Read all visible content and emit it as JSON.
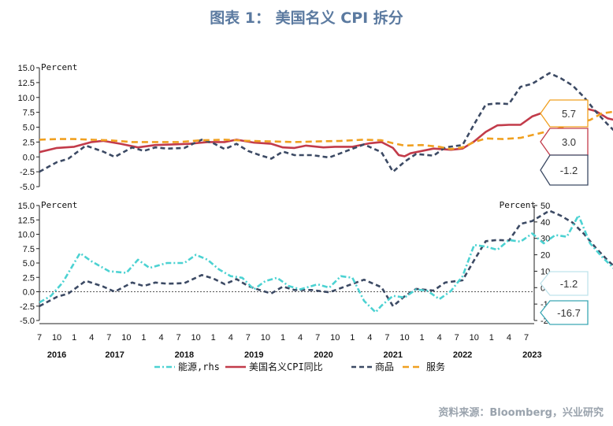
{
  "title": "图表 1：  美国名义 CPI 拆分",
  "source": "资料来源：Bloomberg，兴业研究",
  "chart_data": [
    {
      "type": "line",
      "panel": "top",
      "unit_label": "Percent",
      "ylim": [
        -5,
        15
      ],
      "yticks": [
        "15.0",
        "12.5",
        "10.0",
        "7.5",
        "5.0",
        "2.5",
        "0.0",
        "-2.5",
        "-5.0"
      ],
      "x_start": "2016-07",
      "x_end": "2023-07",
      "series": [
        {
          "key": "cpi",
          "color": "#c23b4a",
          "dash": "solid",
          "values": [
            [
              0,
              0.8
            ],
            [
              3,
              1.5
            ],
            [
              6,
              1.7
            ],
            [
              9,
              2.5
            ],
            [
              11,
              2.7
            ],
            [
              14,
              2.2
            ],
            [
              17,
              1.6
            ],
            [
              20,
              2.0
            ],
            [
              23,
              2.1
            ],
            [
              26,
              2.2
            ],
            [
              29,
              2.5
            ],
            [
              32,
              2.5
            ],
            [
              34,
              2.9
            ],
            [
              37,
              2.4
            ],
            [
              40,
              2.2
            ],
            [
              42,
              1.6
            ],
            [
              44,
              1.5
            ],
            [
              46,
              1.9
            ],
            [
              49,
              1.6
            ],
            [
              51,
              1.7
            ],
            [
              54,
              1.7
            ],
            [
              57,
              2.3
            ],
            [
              59,
              2.5
            ],
            [
              61,
              1.5
            ],
            [
              62,
              0.3
            ],
            [
              63,
              0.1
            ],
            [
              64,
              0.6
            ],
            [
              66,
              1.0
            ],
            [
              68,
              1.4
            ],
            [
              71,
              1.2
            ],
            [
              73,
              1.4
            ],
            [
              75,
              2.6
            ],
            [
              77,
              4.2
            ],
            [
              79,
              5.3
            ],
            [
              81,
              5.4
            ],
            [
              83,
              5.4
            ],
            [
              85,
              6.8
            ],
            [
              87,
              7.5
            ],
            [
              89,
              8.5
            ],
            [
              90,
              8.3
            ],
            [
              92,
              9.1
            ],
            [
              94,
              8.2
            ],
            [
              96,
              7.7
            ],
            [
              98,
              6.5
            ],
            [
              100,
              6.0
            ],
            [
              102,
              4.9
            ],
            [
              104,
              4.0
            ],
            [
              106,
              3.0
            ]
          ]
        },
        {
          "key": "goods",
          "color": "#3c4a64",
          "dash": "6,4",
          "values": [
            [
              0,
              -2.5
            ],
            [
              3,
              -0.9
            ],
            [
              5,
              -0.3
            ],
            [
              8,
              1.9
            ],
            [
              11,
              0.9
            ],
            [
              13,
              0.0
            ],
            [
              16,
              1.6
            ],
            [
              18,
              1.0
            ],
            [
              20,
              1.6
            ],
            [
              22,
              1.4
            ],
            [
              25,
              1.5
            ],
            [
              28,
              2.9
            ],
            [
              30,
              2.3
            ],
            [
              32,
              1.3
            ],
            [
              34,
              2.2
            ],
            [
              36,
              1.0
            ],
            [
              38,
              0.3
            ],
            [
              40,
              -0.3
            ],
            [
              42,
              0.9
            ],
            [
              44,
              0.3
            ],
            [
              47,
              0.3
            ],
            [
              50,
              -0.1
            ],
            [
              53,
              1.0
            ],
            [
              56,
              2.1
            ],
            [
              59,
              0.8
            ],
            [
              61,
              -2.5
            ],
            [
              63,
              -0.8
            ],
            [
              65,
              0.5
            ],
            [
              68,
              0.2
            ],
            [
              70,
              1.6
            ],
            [
              73,
              2.0
            ],
            [
              75,
              5.5
            ],
            [
              77,
              8.8
            ],
            [
              79,
              9.0
            ],
            [
              81,
              8.9
            ],
            [
              83,
              11.8
            ],
            [
              85,
              12.3
            ],
            [
              87,
              13.5
            ],
            [
              88,
              14.1
            ],
            [
              90,
              13.2
            ],
            [
              92,
              12.0
            ],
            [
              94,
              10.0
            ],
            [
              96,
              7.6
            ],
            [
              98,
              5.5
            ],
            [
              100,
              3.6
            ],
            [
              103,
              1.4
            ],
            [
              106,
              -1.2
            ]
          ]
        },
        {
          "key": "services",
          "color": "#f0a020",
          "dash": "8,5",
          "values": [
            [
              0,
              2.9
            ],
            [
              3,
              3.0
            ],
            [
              6,
              3.0
            ],
            [
              9,
              2.9
            ],
            [
              12,
              2.8
            ],
            [
              16,
              2.5
            ],
            [
              20,
              2.5
            ],
            [
              24,
              2.5
            ],
            [
              28,
              2.8
            ],
            [
              32,
              2.9
            ],
            [
              36,
              2.7
            ],
            [
              40,
              2.6
            ],
            [
              44,
              2.5
            ],
            [
              48,
              2.6
            ],
            [
              52,
              2.7
            ],
            [
              56,
              2.9
            ],
            [
              59,
              2.8
            ],
            [
              61,
              2.3
            ],
            [
              63,
              1.9
            ],
            [
              66,
              2.0
            ],
            [
              69,
              1.7
            ],
            [
              71,
              1.3
            ],
            [
              73,
              1.6
            ],
            [
              75,
              2.5
            ],
            [
              77,
              3.1
            ],
            [
              80,
              3.0
            ],
            [
              83,
              3.2
            ],
            [
              86,
              3.9
            ],
            [
              89,
              4.6
            ],
            [
              92,
              5.6
            ],
            [
              95,
              6.2
            ],
            [
              97,
              7.3
            ],
            [
              99,
              7.6
            ],
            [
              102,
              7.6
            ],
            [
              104,
              6.9
            ],
            [
              106,
              5.7
            ]
          ]
        }
      ],
      "callouts": [
        {
          "text": "5.7",
          "color": "#f0a020"
        },
        {
          "text": "3.0",
          "color": "#c23b4a"
        },
        {
          "text": "-1.2",
          "color": "#3c4a64"
        }
      ]
    },
    {
      "type": "line",
      "panel": "bottom",
      "unit_label_left": "Percent",
      "unit_label_right": "Percent",
      "ylim": [
        -5,
        15
      ],
      "yticks": [
        "15.0",
        "12.5",
        "10.0",
        "7.5",
        "5.0",
        "2.5",
        "0.0",
        "-2.5",
        "-5.0"
      ],
      "ylim_rhs": [
        -20,
        50
      ],
      "yticks_rhs": [
        "50",
        "40",
        "30",
        "20",
        "10",
        "0",
        "-10",
        "-20"
      ],
      "zero_line": true,
      "series": [
        {
          "key": "goods",
          "axis": "left",
          "color": "#3c4a64",
          "dash": "6,4",
          "values": [
            [
              0,
              -2.5
            ],
            [
              3,
              -0.9
            ],
            [
              5,
              -0.3
            ],
            [
              8,
              1.9
            ],
            [
              11,
              0.9
            ],
            [
              13,
              0.0
            ],
            [
              16,
              1.6
            ],
            [
              18,
              1.0
            ],
            [
              20,
              1.6
            ],
            [
              22,
              1.4
            ],
            [
              25,
              1.5
            ],
            [
              28,
              2.9
            ],
            [
              30,
              2.3
            ],
            [
              32,
              1.3
            ],
            [
              34,
              2.2
            ],
            [
              36,
              1.0
            ],
            [
              38,
              0.3
            ],
            [
              40,
              -0.3
            ],
            [
              42,
              0.9
            ],
            [
              44,
              0.3
            ],
            [
              47,
              0.3
            ],
            [
              50,
              -0.1
            ],
            [
              53,
              1.0
            ],
            [
              56,
              2.1
            ],
            [
              59,
              0.8
            ],
            [
              61,
              -2.5
            ],
            [
              63,
              -0.8
            ],
            [
              65,
              0.5
            ],
            [
              68,
              0.2
            ],
            [
              70,
              1.6
            ],
            [
              73,
              2.0
            ],
            [
              75,
              5.5
            ],
            [
              77,
              8.8
            ],
            [
              79,
              9.0
            ],
            [
              81,
              8.9
            ],
            [
              83,
              11.8
            ],
            [
              85,
              12.3
            ],
            [
              87,
              13.5
            ],
            [
              88,
              14.1
            ],
            [
              90,
              13.2
            ],
            [
              92,
              12.0
            ],
            [
              94,
              10.0
            ],
            [
              96,
              7.6
            ],
            [
              98,
              5.5
            ],
            [
              100,
              3.6
            ],
            [
              103,
              1.4
            ],
            [
              106,
              -1.2
            ]
          ]
        },
        {
          "key": "energy",
          "axis": "right",
          "color": "#4cd2d2",
          "dash": "7,3,2,3",
          "values": [
            [
              0,
              -9
            ],
            [
              2,
              -5
            ],
            [
              4,
              3
            ],
            [
              7,
              21
            ],
            [
              9,
              16
            ],
            [
              12,
              10
            ],
            [
              15,
              9
            ],
            [
              17,
              17
            ],
            [
              19,
              12
            ],
            [
              22,
              15
            ],
            [
              25,
              15
            ],
            [
              27,
              20
            ],
            [
              29,
              17
            ],
            [
              31,
              11
            ],
            [
              33,
              7
            ],
            [
              35,
              6
            ],
            [
              37,
              -1
            ],
            [
              39,
              4
            ],
            [
              41,
              6
            ],
            [
              43,
              1
            ],
            [
              45,
              -1
            ],
            [
              48,
              2
            ],
            [
              50,
              0
            ],
            [
              52,
              7
            ],
            [
              54,
              6
            ],
            [
              56,
              -8
            ],
            [
              58,
              -15
            ],
            [
              59,
              -11
            ],
            [
              61,
              -5
            ],
            [
              63,
              -6
            ],
            [
              65,
              -1
            ],
            [
              67,
              -2
            ],
            [
              69,
              -7
            ],
            [
              71,
              -2
            ],
            [
              73,
              7
            ],
            [
              75,
              26
            ],
            [
              77,
              25
            ],
            [
              79,
              23
            ],
            [
              81,
              29
            ],
            [
              83,
              28
            ],
            [
              85,
              33
            ],
            [
              87,
              27
            ],
            [
              89,
              32
            ],
            [
              91,
              31
            ],
            [
              93,
              44
            ],
            [
              95,
              27
            ],
            [
              97,
              19
            ],
            [
              99,
              12
            ],
            [
              101,
              8
            ],
            [
              103,
              -1
            ],
            [
              105,
              -5
            ],
            [
              106,
              -16.7
            ]
          ]
        }
      ],
      "callouts": [
        {
          "text": "-1.2",
          "color": "#bfe3ec"
        },
        {
          "text": "-16.7",
          "color": "#3aa7b4"
        }
      ]
    }
  ],
  "x_axis": {
    "month_ticks": [
      "7",
      "10",
      "1",
      "4",
      "7",
      "10",
      "1",
      "4",
      "7",
      "10",
      "1",
      "4",
      "7",
      "10",
      "1",
      "4",
      "7",
      "10",
      "1",
      "4",
      "7",
      "10",
      "1",
      "4",
      "7",
      "10",
      "1",
      "4",
      "7"
    ],
    "year_labels": [
      {
        "text": "2016",
        "month": 3
      },
      {
        "text": "2017",
        "month": 13
      },
      {
        "text": "2018",
        "month": 25
      },
      {
        "text": "2019",
        "month": 37
      },
      {
        "text": "2020",
        "month": 49
      },
      {
        "text": "2021",
        "month": 61
      },
      {
        "text": "2022",
        "month": 73
      },
      {
        "text": "2023",
        "month": 85
      }
    ]
  },
  "legend": [
    {
      "key": "energy",
      "label": "能源,rhs",
      "color": "#4cd2d2",
      "dash": "7,3,2,3"
    },
    {
      "key": "cpi",
      "label": "美国名义CPI同比",
      "color": "#c23b4a",
      "dash": "solid"
    },
    {
      "key": "goods",
      "label": "商品",
      "color": "#3c4a64",
      "dash": "6,4"
    },
    {
      "key": "services",
      "label": "服务",
      "color": "#f0a020",
      "dash": "8,5"
    }
  ]
}
